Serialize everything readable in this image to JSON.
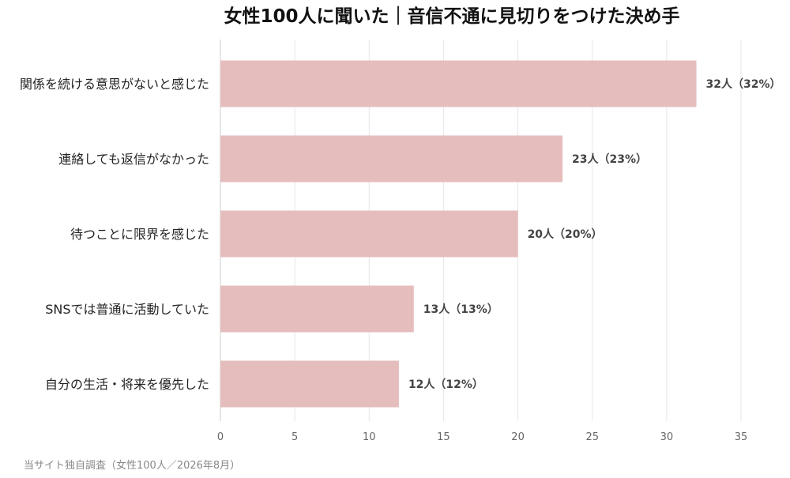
{
  "chart_data": {
    "type": "bar",
    "orientation": "horizontal",
    "title": "女性100人に聞いた｜音信不通に見切りをつけた決め手",
    "categories": [
      "関係を続ける意思がないと感じた",
      "連絡しても返信がなかった",
      "待つことに限界を感じた",
      "SNSでは普通に活動していた",
      "自分の生活・将来を優先した"
    ],
    "values": [
      32,
      23,
      20,
      13,
      12
    ],
    "value_labels": [
      "32人（32%）",
      "23人（23%）",
      "20人（20%）",
      "13人（13%）",
      "12人（12%）"
    ],
    "xlim": [
      0,
      35
    ],
    "x_ticks": [
      "0",
      "5",
      "10",
      "15",
      "20",
      "25",
      "30",
      "35"
    ],
    "xlabel": "",
    "ylabel": "",
    "grid": "vertical",
    "legend": "none",
    "bar_color": "#e6bdbd",
    "source": "当サイト独自調査（女性100人／2026年8月）"
  }
}
